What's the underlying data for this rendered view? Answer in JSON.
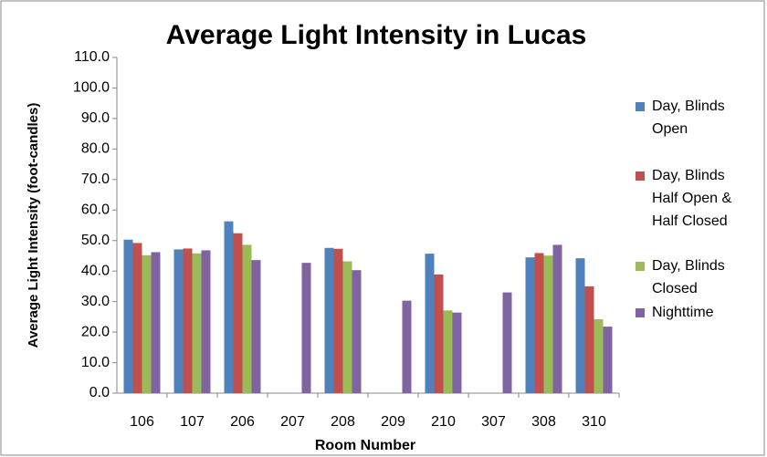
{
  "chart_data": {
    "type": "bar",
    "title": "Average Light Intensity in Lucas",
    "x_label": "Room Number",
    "y_label": "Average Light Intensity (foot-candles)",
    "categories": [
      "106",
      "107",
      "206",
      "207",
      "208",
      "209",
      "210",
      "307",
      "308",
      "310"
    ],
    "series": [
      {
        "name": "Day, Blinds Open",
        "color": "#4f81bd",
        "values": [
          50.3,
          47.1,
          56.3,
          null,
          47.6,
          null,
          45.7,
          null,
          44.5,
          44.2
        ]
      },
      {
        "name": "Day, Blinds Half Open & Half Closed",
        "color": "#c0504d",
        "values": [
          49.2,
          47.4,
          52.4,
          null,
          47.3,
          null,
          38.9,
          null,
          45.9,
          35.0
        ]
      },
      {
        "name": "Day, Blinds Closed",
        "color": "#9bbb59",
        "values": [
          45.2,
          45.8,
          48.6,
          null,
          43.2,
          null,
          27.1,
          null,
          45.1,
          24.2
        ]
      },
      {
        "name": "Nighttime",
        "color": "#8064a2",
        "values": [
          46.2,
          46.8,
          43.6,
          42.7,
          40.3,
          30.3,
          26.4,
          33.0,
          48.6,
          21.8
        ]
      }
    ],
    "ylim": [
      0,
      110
    ],
    "yticks": [
      {
        "value": 0,
        "label": "0.0"
      },
      {
        "value": 10,
        "label": "10.0"
      },
      {
        "value": 20,
        "label": "20.0"
      },
      {
        "value": 30,
        "label": "30.0"
      },
      {
        "value": 40,
        "label": "40.0"
      },
      {
        "value": 50,
        "label": "50.0"
      },
      {
        "value": 60,
        "label": "60.0"
      },
      {
        "value": 70,
        "label": "70.0"
      },
      {
        "value": 80,
        "label": "80.0"
      },
      {
        "value": 90,
        "label": "90.0"
      },
      {
        "value": 100,
        "label": "100.0"
      },
      {
        "value": 110,
        "label": "110.0"
      }
    ],
    "legend": "right"
  }
}
